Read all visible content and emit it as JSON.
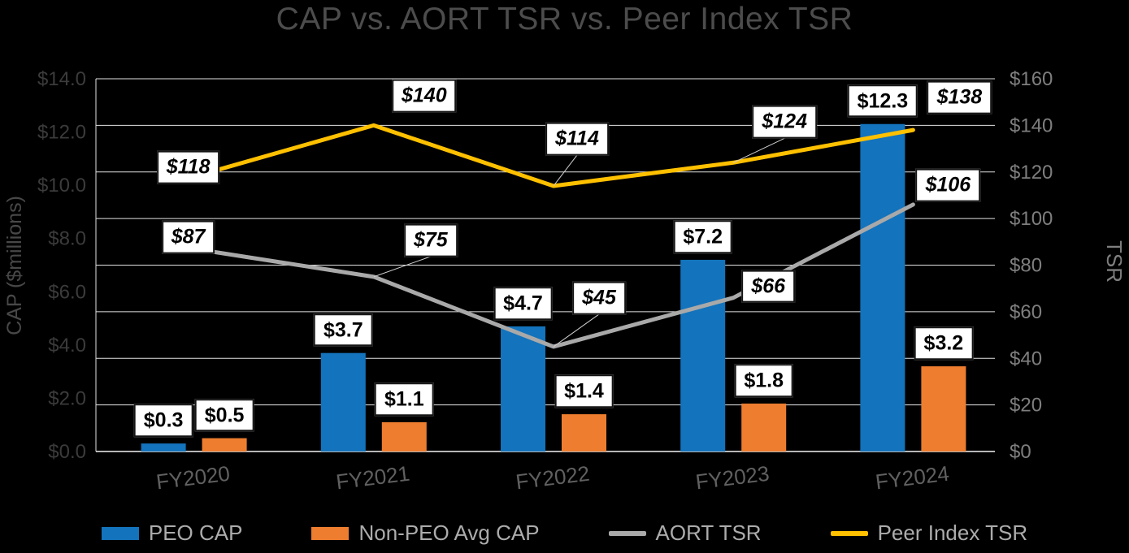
{
  "title": "CAP vs. AORT TSR vs. Peer Index TSR",
  "chart_data": {
    "type": "combo-bar-line",
    "title": "CAP vs. AORT TSR vs. Peer Index TSR",
    "categories": [
      "FY2020",
      "FY2021",
      "FY2022",
      "FY2023",
      "FY2024"
    ],
    "bar_series": [
      {
        "name": "PEO CAP",
        "axis": "left",
        "color": "#1373BC",
        "values": [
          0.3,
          3.7,
          4.7,
          7.2,
          12.3
        ],
        "labels": [
          "$0.3",
          "$3.7",
          "$4.7",
          "$7.2",
          "$12.3"
        ]
      },
      {
        "name": "Non-PEO Avg CAP",
        "axis": "left",
        "color": "#EE7D2F",
        "values": [
          0.5,
          1.1,
          1.4,
          1.8,
          3.2
        ],
        "labels": [
          "$0.5",
          "$1.1",
          "$1.4",
          "$1.8",
          "$3.2"
        ]
      }
    ],
    "line_series": [
      {
        "name": "AORT TSR",
        "axis": "right",
        "color": "#A9A9A9",
        "values": [
          87,
          75,
          45,
          66,
          106
        ],
        "labels": [
          "$87",
          "$75",
          "$45",
          "$66",
          "$106"
        ]
      },
      {
        "name": "Peer Index TSR",
        "axis": "right",
        "color": "#FFC000",
        "values": [
          118,
          140,
          114,
          124,
          138
        ],
        "labels": [
          "$118",
          "$140",
          "$114",
          "$124",
          "$138"
        ]
      }
    ],
    "left_axis": {
      "title": "CAP ($millions)",
      "min": 0,
      "max": 14,
      "ticks": [
        "$0.0",
        "$2.0",
        "$4.0",
        "$6.0",
        "$8.0",
        "$10.0",
        "$12.0",
        "$14.0"
      ]
    },
    "right_axis": {
      "title": "TSR",
      "min": 0,
      "max": 160,
      "ticks": [
        "$0",
        "$20",
        "$40",
        "$60",
        "$80",
        "$100",
        "$120",
        "$140",
        "$160"
      ]
    },
    "grid": true,
    "legend_position": "bottom"
  }
}
